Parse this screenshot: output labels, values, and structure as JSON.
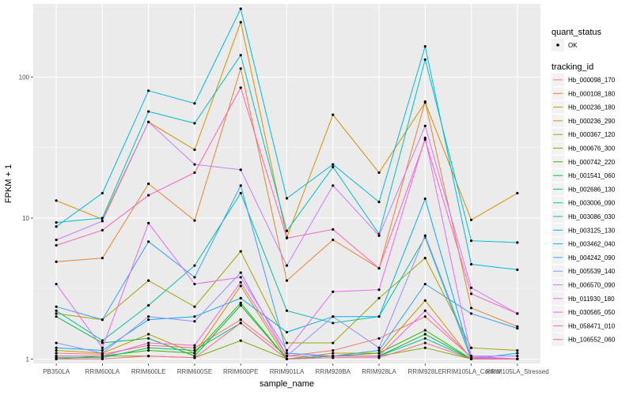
{
  "chart_data": {
    "type": "line",
    "title": "",
    "xlabel": "sample_name",
    "ylabel": "FPKM + 1",
    "y_scale": "log10",
    "ylim": [
      0.93,
      330
    ],
    "y_ticks": [
      1,
      10,
      100
    ],
    "y_tick_labels": [
      "1",
      "10",
      "100"
    ],
    "grid": true,
    "legend_position": "right",
    "categories": [
      "PB350LA",
      "RRIM600LA",
      "RRIM600LE",
      "RRIM600SE",
      "RRIM600PE",
      "RRIM901LA",
      "RRIM928BA",
      "RRIM928LA",
      "RRIM928LE",
      "RRIM105LA_Control",
      "RRIM105LA_Stressed"
    ],
    "shape_legend": {
      "title": "quant_status",
      "entries": [
        "OK"
      ]
    },
    "color_legend": {
      "title": "tracking_id"
    },
    "series": [
      {
        "name": "Hb_000098_170",
        "color": "#F8766D",
        "values": [
          1.1,
          1.08,
          1.25,
          1.2,
          1.9,
          1.05,
          1.15,
          1.4,
          2.0,
          1.03,
          1.0
        ]
      },
      {
        "name": "Hb_000108_180",
        "color": "#EA8331",
        "values": [
          4.9,
          5.2,
          17.5,
          9.6,
          115,
          3.6,
          7.0,
          4.4,
          67.0,
          2.3,
          1.7
        ]
      },
      {
        "name": "Hb_000236_180",
        "color": "#D89000",
        "values": [
          13.3,
          9.8,
          48.0,
          30.5,
          245,
          7.3,
          54.0,
          21.0,
          66.0,
          9.7,
          15.0
        ]
      },
      {
        "name": "Hb_000236_290",
        "color": "#C09B00",
        "values": [
          1.15,
          1.1,
          1.5,
          1.1,
          3.3,
          1.0,
          1.1,
          1.1,
          2.6,
          1.0,
          1.0
        ]
      },
      {
        "name": "Hb_000367_120",
        "color": "#A3A500",
        "values": [
          2.1,
          1.9,
          3.6,
          2.35,
          5.8,
          1.3,
          1.3,
          2.7,
          5.2,
          1.2,
          1.15
        ]
      },
      {
        "name": "Hb_000676_300",
        "color": "#7CAE00",
        "values": [
          1.05,
          1.05,
          1.05,
          1.02,
          1.35,
          1.0,
          1.05,
          1.05,
          1.2,
          1.0,
          1.0
        ]
      },
      {
        "name": "Hb_000742_220",
        "color": "#39B600",
        "values": [
          1.0,
          1.05,
          1.15,
          1.1,
          2.5,
          1.0,
          1.05,
          1.1,
          1.6,
          1.0,
          1.0
        ]
      },
      {
        "name": "Hb_001541_060",
        "color": "#00BB4E",
        "values": [
          2.0,
          1.3,
          1.4,
          1.05,
          2.4,
          1.0,
          1.05,
          1.05,
          1.5,
          1.0,
          1.0
        ]
      },
      {
        "name": "Hb_002686_130",
        "color": "#00BF7D",
        "values": [
          1.02,
          1.02,
          1.2,
          1.15,
          1.8,
          1.0,
          1.05,
          1.05,
          1.4,
          1.0,
          1.0
        ]
      },
      {
        "name": "Hb_003006_090",
        "color": "#00C1A3",
        "values": [
          2.2,
          1.35,
          2.4,
          4.6,
          15.0,
          2.2,
          1.8,
          2.0,
          7.3,
          1.0,
          1.0
        ]
      },
      {
        "name": "Hb_003086_030",
        "color": "#00BFC4",
        "values": [
          9.3,
          10.0,
          57.0,
          47.0,
          143,
          8.1,
          23.0,
          7.7,
          133,
          6.9,
          6.7
        ]
      },
      {
        "name": "Hb_003125_130",
        "color": "#00BAE0",
        "values": [
          8.7,
          15.0,
          80.0,
          65.0,
          305,
          13.8,
          24.0,
          13.0,
          165,
          4.7,
          4.3
        ]
      },
      {
        "name": "Hb_003462_040",
        "color": "#00B0F6",
        "values": [
          1.2,
          1.15,
          1.9,
          2.0,
          2.7,
          1.55,
          2.0,
          2.0,
          13.7,
          1.0,
          1.1
        ]
      },
      {
        "name": "Hb_004242_090",
        "color": "#35A2FF",
        "values": [
          2.35,
          1.9,
          6.8,
          3.8,
          17.0,
          1.1,
          1.05,
          1.15,
          3.4,
          2.1,
          1.65
        ]
      },
      {
        "name": "Hb_005539_140",
        "color": "#9590FF",
        "values": [
          1.3,
          1.1,
          2.0,
          1.85,
          4.1,
          1.05,
          2.0,
          1.2,
          7.5,
          1.05,
          1.05
        ]
      },
      {
        "name": "Hb_006570_090",
        "color": "#C77CFF",
        "values": [
          7.0,
          9.5,
          48.0,
          24.0,
          22.0,
          4.6,
          17.0,
          7.5,
          45.0,
          3.2,
          2.1
        ]
      },
      {
        "name": "Hb_011930_180",
        "color": "#E76BF3",
        "values": [
          3.4,
          1.2,
          9.2,
          3.4,
          3.8,
          1.15,
          3.0,
          3.1,
          37.0,
          1.05,
          1.0
        ]
      },
      {
        "name": "Hb_030565_050",
        "color": "#FA62DB",
        "values": [
          1.05,
          1.05,
          1.3,
          1.25,
          3.5,
          1.05,
          1.05,
          1.05,
          2.2,
          1.02,
          1.0
        ]
      },
      {
        "name": "Hb_058471_010",
        "color": "#FF62BC",
        "values": [
          6.4,
          8.2,
          14.5,
          21.0,
          84.0,
          7.2,
          8.3,
          4.4,
          36.0,
          2.9,
          2.1
        ]
      },
      {
        "name": "Hb_106552_060",
        "color": "#FF6C91",
        "values": [
          1.0,
          1.0,
          1.05,
          1.02,
          1.8,
          1.0,
          1.02,
          1.02,
          1.3,
          1.0,
          1.0
        ]
      }
    ]
  }
}
